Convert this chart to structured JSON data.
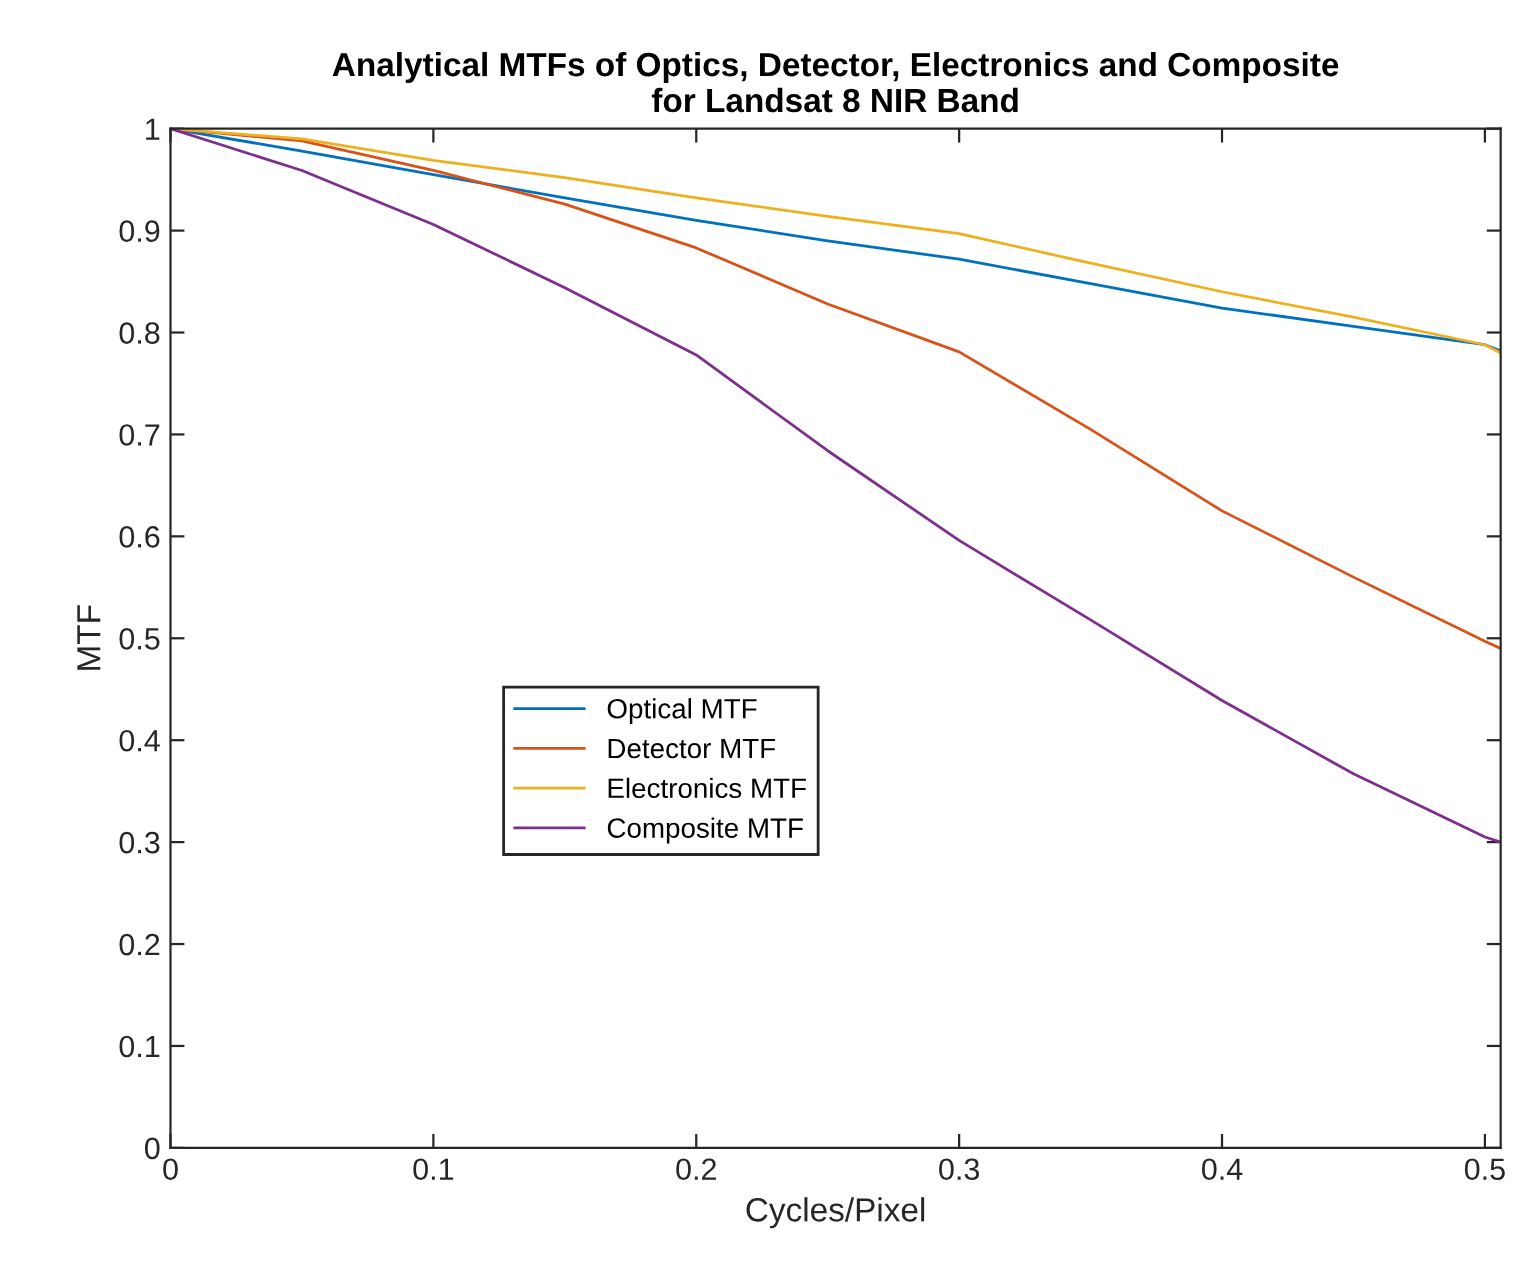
{
  "chart_data": {
    "type": "line",
    "title": "Analytical MTFs of Optics, Detector, Electronics and Composite\nfor Landsat 8 NIR Band",
    "xlabel": "Cycles/Pixel",
    "ylabel": "MTF",
    "x": [
      0,
      0.05,
      0.1,
      0.15,
      0.2,
      0.25,
      0.3,
      0.35,
      0.4,
      0.45,
      0.5,
      0.506
    ],
    "series": [
      {
        "name": "Optical MTF",
        "color": "#0072bd",
        "values": [
          1,
          0.978,
          0.955,
          0.932,
          0.91,
          0.89,
          0.872,
          0.848,
          0.824,
          0.806,
          0.788,
          0.782
        ]
      },
      {
        "name": "Detector MTF",
        "color": "#d95319",
        "values": [
          1,
          0.988,
          0.959,
          0.926,
          0.883,
          0.828,
          0.781,
          0.705,
          0.625,
          0.56,
          0.497,
          0.49
        ]
      },
      {
        "name": "Electronics MTF",
        "color": "#edb120",
        "values": [
          1,
          0.99,
          0.969,
          0.952,
          0.932,
          0.914,
          0.897,
          0.868,
          0.84,
          0.815,
          0.788,
          0.78
        ]
      },
      {
        "name": "Composite MTF",
        "color": "#7e2f8e",
        "values": [
          1,
          0.959,
          0.906,
          0.844,
          0.778,
          0.684,
          0.596,
          0.518,
          0.439,
          0.367,
          0.305,
          0.3
        ]
      }
    ],
    "xlim": [
      0,
      0.506
    ],
    "xticks": [
      0,
      0.1,
      0.2,
      0.3,
      0.4,
      0.5
    ],
    "ylim": [
      0,
      1
    ],
    "yticks": [
      0,
      0.1,
      0.2,
      0.3,
      0.4,
      0.5,
      0.6,
      0.7,
      0.8,
      0.9,
      1
    ],
    "legend": "left",
    "grid": false,
    "marker": "none",
    "line_style": "solid"
  }
}
